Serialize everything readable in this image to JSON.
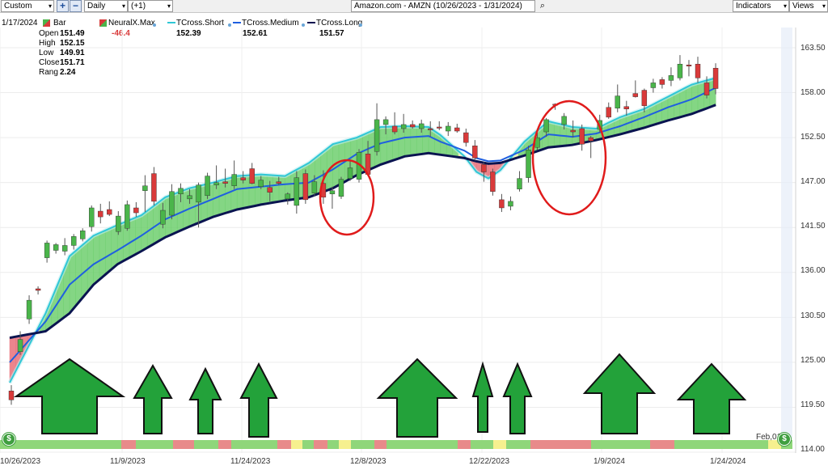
{
  "toolbar": {
    "period": "Custom",
    "interval": "Daily",
    "offset": "(+1)",
    "symbol_title": "Amazon.com - AMZN (10/26/2023 - 1/31/2024)",
    "indicators": "Indicators",
    "views": "Views",
    "plus": "+",
    "minus": "−",
    "search_glyph": "⌕",
    "more_glyph": "▾"
  },
  "legend": {
    "date": "1/17/2024",
    "bar": "Bar",
    "neural": {
      "label": "NeuralX.Max",
      "value": "-46.4"
    },
    "short": {
      "label": "TCross.Short",
      "value": "152.39"
    },
    "medium": {
      "label": "TCross.Medium",
      "value": "152.61"
    },
    "long": {
      "label": "TCross.Long",
      "value": "151.57"
    },
    "ohlc": [
      {
        "label": "Open",
        "value": "151.49"
      },
      {
        "label": "High",
        "value": "152.15"
      },
      {
        "label": "Low",
        "value": "149.91"
      },
      {
        "label": "Close",
        "value": "151.71"
      },
      {
        "label": "Rang",
        "value": "2.24"
      }
    ]
  },
  "colors": {
    "up": "#4ab54a",
    "down": "#d93a3a",
    "short": "#2fc7d6",
    "medium": "#1f5fe0",
    "long": "#0a1450",
    "fill_bull": "#6fcf6f",
    "fill_bear": "#e9707a",
    "fill_neutral": "#f7f2a0",
    "arrow": "#23a23a",
    "circle": "#e01b1b",
    "strip_green": "#8fd67a",
    "strip_red": "#e88a8a",
    "strip_yellow": "#f6f08f"
  },
  "chart_data": {
    "type": "candlestick",
    "y_axis_ticks": [
      "163.50",
      "158.00",
      "152.50",
      "147.00",
      "141.50",
      "136.00",
      "130.50",
      "125.00",
      "119.50",
      "114.00"
    ],
    "ylim": [
      114.0,
      165.5
    ],
    "x_axis_ticks": [
      "10/26/2023",
      "11/9/2023",
      "11/24/2023",
      "12/8/2023",
      "12/22/2023",
      "1/9/2024",
      "1/24/2024",
      "Feb,01"
    ],
    "candles": [
      {
        "o": 121.5,
        "h": 122.2,
        "l": 119.8,
        "c": 120.4
      },
      {
        "o": 126.3,
        "h": 128.8,
        "l": 125.9,
        "c": 127.8
      },
      {
        "o": 130.3,
        "h": 133.2,
        "l": 129.7,
        "c": 132.6
      },
      {
        "o": 134.0,
        "h": 134.3,
        "l": 133.3,
        "c": 133.8
      },
      {
        "o": 137.8,
        "h": 139.9,
        "l": 137.2,
        "c": 139.6
      },
      {
        "o": 138.7,
        "h": 139.6,
        "l": 138.3,
        "c": 139.4
      },
      {
        "o": 138.6,
        "h": 140.2,
        "l": 138.1,
        "c": 139.3
      },
      {
        "o": 139.3,
        "h": 140.7,
        "l": 138.8,
        "c": 140.4
      },
      {
        "o": 140.1,
        "h": 141.4,
        "l": 139.8,
        "c": 141.1
      },
      {
        "o": 141.6,
        "h": 144.2,
        "l": 141.0,
        "c": 143.9
      },
      {
        "o": 143.5,
        "h": 144.4,
        "l": 142.0,
        "c": 142.8
      },
      {
        "o": 143.7,
        "h": 144.7,
        "l": 142.9,
        "c": 143.1
      },
      {
        "o": 141.0,
        "h": 143.5,
        "l": 140.6,
        "c": 142.9
      },
      {
        "o": 141.4,
        "h": 144.8,
        "l": 141.1,
        "c": 144.3
      },
      {
        "o": 143.9,
        "h": 144.6,
        "l": 142.8,
        "c": 143.3
      },
      {
        "o": 146.0,
        "h": 147.9,
        "l": 143.4,
        "c": 146.6
      },
      {
        "o": 148.1,
        "h": 148.9,
        "l": 144.2,
        "c": 144.7
      },
      {
        "o": 141.9,
        "h": 144.5,
        "l": 141.4,
        "c": 143.6
      },
      {
        "o": 143.0,
        "h": 146.8,
        "l": 142.5,
        "c": 145.9
      },
      {
        "o": 145.6,
        "h": 146.9,
        "l": 144.6,
        "c": 146.3
      },
      {
        "o": 145.0,
        "h": 146.2,
        "l": 144.4,
        "c": 145.4
      },
      {
        "o": 144.6,
        "h": 147.0,
        "l": 141.5,
        "c": 146.7
      },
      {
        "o": 145.4,
        "h": 148.2,
        "l": 145.0,
        "c": 147.8
      },
      {
        "o": 146.7,
        "h": 149.1,
        "l": 146.2,
        "c": 147.0
      },
      {
        "o": 147.1,
        "h": 148.7,
        "l": 146.4,
        "c": 146.9
      },
      {
        "o": 146.6,
        "h": 149.7,
        "l": 146.2,
        "c": 148.0
      },
      {
        "o": 147.6,
        "h": 148.4,
        "l": 146.9,
        "c": 147.3
      },
      {
        "o": 148.7,
        "h": 149.4,
        "l": 146.8,
        "c": 146.9
      },
      {
        "o": 146.5,
        "h": 147.8,
        "l": 146.2,
        "c": 147.3
      },
      {
        "o": 146.4,
        "h": 147.2,
        "l": 144.7,
        "c": 145.8
      },
      {
        "o": 147.1,
        "h": 147.7,
        "l": 146.7,
        "c": 146.9
      },
      {
        "o": 145.0,
        "h": 145.8,
        "l": 144.3,
        "c": 145.6
      },
      {
        "o": 144.2,
        "h": 148.4,
        "l": 143.2,
        "c": 147.6
      },
      {
        "o": 148.1,
        "h": 148.6,
        "l": 144.4,
        "c": 144.9
      },
      {
        "o": 145.7,
        "h": 147.9,
        "l": 145.3,
        "c": 147.1
      },
      {
        "o": 146.9,
        "h": 148.5,
        "l": 144.4,
        "c": 145.2
      },
      {
        "o": 145.6,
        "h": 146.5,
        "l": 143.8,
        "c": 146.0
      },
      {
        "o": 145.3,
        "h": 147.7,
        "l": 145.0,
        "c": 147.4
      },
      {
        "o": 147.5,
        "h": 149.7,
        "l": 147.2,
        "c": 148.8
      },
      {
        "o": 147.4,
        "h": 151.1,
        "l": 147.0,
        "c": 150.7
      },
      {
        "o": 150.5,
        "h": 152.1,
        "l": 148.4,
        "c": 148.0
      },
      {
        "o": 150.8,
        "h": 156.7,
        "l": 150.3,
        "c": 154.7
      },
      {
        "o": 154.1,
        "h": 155.1,
        "l": 152.9,
        "c": 154.7
      },
      {
        "o": 153.9,
        "h": 155.6,
        "l": 152.9,
        "c": 153.2
      },
      {
        "o": 153.6,
        "h": 155.4,
        "l": 153.1,
        "c": 154.1
      },
      {
        "o": 154.1,
        "h": 154.6,
        "l": 153.6,
        "c": 153.8
      },
      {
        "o": 153.6,
        "h": 154.7,
        "l": 153.1,
        "c": 154.2
      },
      {
        "o": 153.6,
        "h": 154.5,
        "l": 152.6,
        "c": 153.5
      },
      {
        "o": 153.8,
        "h": 154.5,
        "l": 153.4,
        "c": 153.7
      },
      {
        "o": 153.3,
        "h": 154.4,
        "l": 152.7,
        "c": 153.9
      },
      {
        "o": 153.7,
        "h": 154.2,
        "l": 153.1,
        "c": 153.3
      },
      {
        "o": 153.1,
        "h": 153.6,
        "l": 151.4,
        "c": 151.9
      },
      {
        "o": 151.5,
        "h": 152.2,
        "l": 149.7,
        "c": 150.0
      },
      {
        "o": 149.2,
        "h": 149.5,
        "l": 147.1,
        "c": 148.3
      },
      {
        "o": 148.3,
        "h": 148.7,
        "l": 145.4,
        "c": 145.9
      },
      {
        "o": 144.9,
        "h": 145.6,
        "l": 143.4,
        "c": 143.9
      },
      {
        "o": 144.1,
        "h": 145.3,
        "l": 143.6,
        "c": 144.7
      },
      {
        "o": 146.2,
        "h": 148.4,
        "l": 145.9,
        "c": 147.5
      },
      {
        "o": 147.6,
        "h": 151.5,
        "l": 147.0,
        "c": 151.0
      },
      {
        "o": 151.3,
        "h": 153.1,
        "l": 151.0,
        "c": 152.5
      },
      {
        "o": 153.2,
        "h": 154.9,
        "l": 152.6,
        "c": 154.7
      },
      {
        "o": 156.6,
        "h": 156.7,
        "l": 155.9,
        "c": 156.5
      },
      {
        "o": 154.1,
        "h": 155.5,
        "l": 153.5,
        "c": 155.1
      },
      {
        "o": 153.4,
        "h": 154.6,
        "l": 152.5,
        "c": 153.2
      },
      {
        "o": 153.6,
        "h": 154.1,
        "l": 150.9,
        "c": 151.7
      },
      {
        "o": 152.5,
        "h": 152.7,
        "l": 150.0,
        "c": 152.1
      },
      {
        "o": 153.5,
        "h": 155.3,
        "l": 153.1,
        "c": 154.6
      },
      {
        "o": 156.2,
        "h": 156.8,
        "l": 154.8,
        "c": 155.0
      },
      {
        "o": 156.1,
        "h": 159.0,
        "l": 155.6,
        "c": 157.6
      },
      {
        "o": 156.3,
        "h": 157.0,
        "l": 155.2,
        "c": 156.0
      },
      {
        "o": 157.9,
        "h": 159.5,
        "l": 157.4,
        "c": 157.5
      },
      {
        "o": 158.3,
        "h": 158.5,
        "l": 155.6,
        "c": 156.4
      },
      {
        "o": 158.6,
        "h": 159.7,
        "l": 158.0,
        "c": 159.2
      },
      {
        "o": 159.6,
        "h": 159.9,
        "l": 158.5,
        "c": 159.0
      },
      {
        "o": 159.5,
        "h": 161.1,
        "l": 158.8,
        "c": 160.1
      },
      {
        "o": 159.8,
        "h": 162.6,
        "l": 159.5,
        "c": 161.5
      },
      {
        "o": 161.4,
        "h": 162.0,
        "l": 160.0,
        "c": 161.3
      },
      {
        "o": 161.5,
        "h": 162.4,
        "l": 159.2,
        "c": 159.8
      },
      {
        "o": 159.2,
        "h": 160.0,
        "l": 157.3,
        "c": 157.7
      },
      {
        "o": 161.0,
        "h": 161.6,
        "l": 157.8,
        "c": 158.5
      }
    ],
    "ma_short": [
      [
        0,
        122.5
      ],
      [
        6,
        131.0
      ],
      [
        10,
        138.0
      ],
      [
        14,
        140.5
      ],
      [
        18,
        141.8
      ],
      [
        22,
        143.0
      ],
      [
        26,
        145.2
      ],
      [
        30,
        146.3
      ],
      [
        34,
        147.0
      ],
      [
        38,
        147.8
      ],
      [
        42,
        148.0
      ],
      [
        46,
        147.8
      ],
      [
        50,
        149.4
      ],
      [
        54,
        151.7
      ],
      [
        58,
        152.5
      ],
      [
        62,
        153.8
      ],
      [
        66,
        153.9
      ],
      [
        70,
        153.8
      ],
      [
        72,
        152.8
      ],
      [
        76,
        150.2
      ],
      [
        78,
        148.3
      ],
      [
        80,
        147.5
      ],
      [
        82,
        148.5
      ],
      [
        86,
        152.0
      ],
      [
        90,
        154.5
      ],
      [
        94,
        153.8
      ],
      [
        98,
        153.6
      ],
      [
        102,
        155.0
      ],
      [
        106,
        156.0
      ],
      [
        110,
        157.5
      ],
      [
        114,
        159.0
      ],
      [
        118,
        159.8
      ]
    ],
    "ma_medium": [
      [
        0,
        125.0
      ],
      [
        6,
        130.0
      ],
      [
        10,
        134.5
      ],
      [
        14,
        137.0
      ],
      [
        18,
        138.7
      ],
      [
        22,
        140.5
      ],
      [
        26,
        142.5
      ],
      [
        30,
        143.8
      ],
      [
        34,
        145.0
      ],
      [
        38,
        146.2
      ],
      [
        42,
        146.5
      ],
      [
        46,
        146.8
      ],
      [
        50,
        147.0
      ],
      [
        54,
        148.6
      ],
      [
        58,
        150.5
      ],
      [
        62,
        151.8
      ],
      [
        66,
        152.5
      ],
      [
        70,
        152.7
      ],
      [
        72,
        152.0
      ],
      [
        76,
        150.9
      ],
      [
        78,
        150.0
      ],
      [
        80,
        149.6
      ],
      [
        82,
        149.7
      ],
      [
        86,
        151.0
      ],
      [
        90,
        152.9
      ],
      [
        94,
        152.6
      ],
      [
        98,
        153.0
      ],
      [
        102,
        153.9
      ],
      [
        106,
        155.0
      ],
      [
        110,
        156.2
      ],
      [
        114,
        157.2
      ],
      [
        118,
        158.6
      ]
    ],
    "ma_long": [
      [
        0,
        128.0
      ],
      [
        6,
        128.8
      ],
      [
        10,
        131.0
      ],
      [
        14,
        134.5
      ],
      [
        18,
        137.0
      ],
      [
        22,
        138.6
      ],
      [
        26,
        140.3
      ],
      [
        30,
        141.6
      ],
      [
        34,
        142.8
      ],
      [
        38,
        143.7
      ],
      [
        42,
        144.3
      ],
      [
        46,
        144.8
      ],
      [
        50,
        145.2
      ],
      [
        54,
        146.3
      ],
      [
        58,
        147.9
      ],
      [
        62,
        149.2
      ],
      [
        66,
        150.2
      ],
      [
        70,
        150.6
      ],
      [
        72,
        150.4
      ],
      [
        76,
        150.0
      ],
      [
        78,
        149.6
      ],
      [
        80,
        149.3
      ],
      [
        82,
        149.4
      ],
      [
        86,
        150.3
      ],
      [
        90,
        151.3
      ],
      [
        94,
        151.6
      ],
      [
        98,
        152.2
      ],
      [
        102,
        152.9
      ],
      [
        106,
        153.7
      ],
      [
        110,
        154.6
      ],
      [
        114,
        155.4
      ],
      [
        118,
        156.5
      ]
    ]
  }
}
